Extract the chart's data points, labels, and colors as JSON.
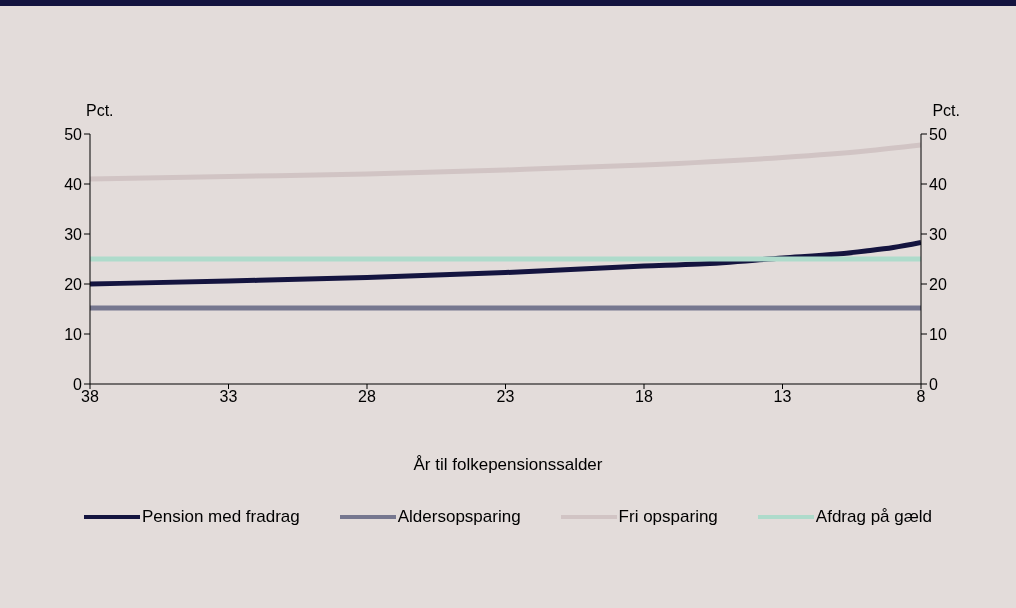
{
  "chart_data": {
    "type": "line",
    "xlabel": "År til folkepensionssalder",
    "ylabel": "Pct.",
    "y2label": "Pct.",
    "xlim": [
      38,
      8
    ],
    "xticks": [
      38,
      33,
      28,
      23,
      18,
      13,
      8
    ],
    "ylim": [
      0,
      50
    ],
    "yticks": [
      0,
      10,
      20,
      30,
      40,
      50
    ],
    "y2lim": [
      0,
      50
    ],
    "y2ticks": [
      0,
      10,
      20,
      30,
      40,
      50
    ],
    "grid": false,
    "legend": "bottom",
    "marker": "none",
    "line_style": "solid",
    "series": [
      {
        "name": "Pension med fradrag",
        "color": "#14143f",
        "x": [
          38,
          33,
          28,
          23,
          18,
          16,
          13,
          11,
          10,
          9,
          8
        ],
        "values": [
          20,
          20.6,
          21.3,
          22.3,
          23.6,
          24,
          25.2,
          26,
          26.6,
          27.3,
          28.3
        ]
      },
      {
        "name": "Aldersopsparing",
        "color": "#76778f",
        "x": [
          38,
          8
        ],
        "values": [
          15.2,
          15.2
        ]
      },
      {
        "name": "Fri opsparing",
        "color": "#d1c4c4",
        "x": [
          38,
          33,
          28,
          23,
          18,
          13,
          10,
          8
        ],
        "values": [
          41,
          41.5,
          42,
          42.8,
          43.8,
          45.3,
          46.6,
          47.8
        ]
      },
      {
        "name": "Afdrag på gæld",
        "color": "#aedbcb",
        "x": [
          38,
          8
        ],
        "values": [
          25,
          25
        ]
      }
    ]
  }
}
